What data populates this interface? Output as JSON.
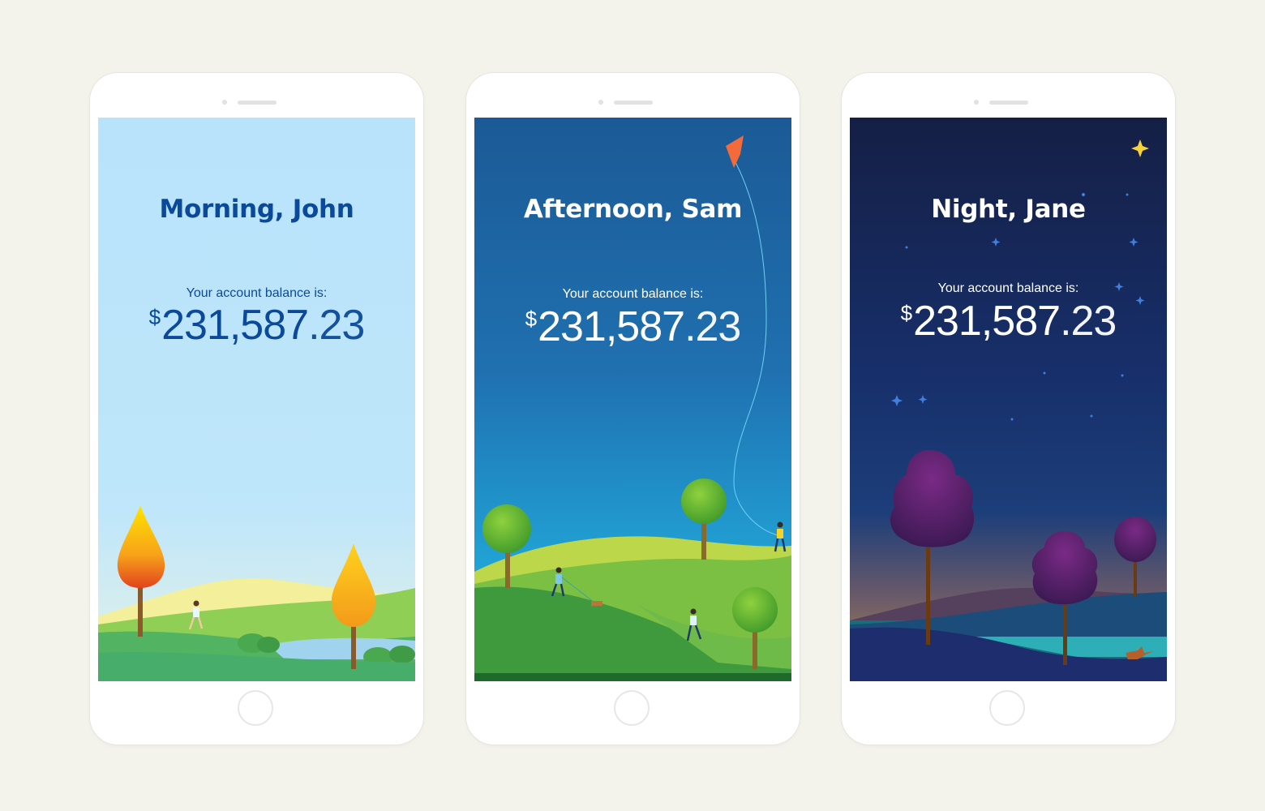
{
  "screens": [
    {
      "theme": "morning",
      "greeting": "Morning, John",
      "balance_label": "Your account balance is:",
      "currency": "$",
      "amount_int": "231,587",
      "amount_dec": ".23",
      "text_color": "#0b4a9a",
      "sky_color": "#b9e4fb"
    },
    {
      "theme": "afternoon",
      "greeting": "Afternoon, Sam",
      "balance_label": "Your account balance is:",
      "currency": "$",
      "amount_int": "231,587",
      "amount_dec": ".23",
      "text_color": "#ffffff",
      "sky_color": "#1c5f9a"
    },
    {
      "theme": "night",
      "greeting": "Night, Jane",
      "balance_label": "Your account balance is:",
      "currency": "$",
      "amount_int": "231,587",
      "amount_dec": ".23",
      "text_color": "#ffffff",
      "sky_color": "#15204a"
    }
  ]
}
